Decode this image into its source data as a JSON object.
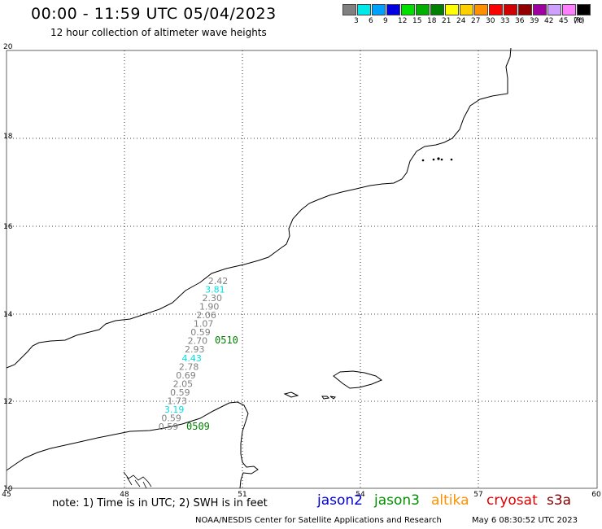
{
  "header": {
    "title": "00:00 - 11:59 UTC 05/04/2023",
    "subtitle": "12 hour collection of altimeter wave heights"
  },
  "legend": {
    "colors": [
      "#808080",
      "#00e8e8",
      "#00a0ff",
      "#0000e0",
      "#00e000",
      "#00b000",
      "#008000",
      "#ffff00",
      "#ffd000",
      "#ff9000",
      "#ff0000",
      "#d00000",
      "#900000",
      "#a000a0",
      "#d0a0ff",
      "#ff80ff",
      "#000000"
    ],
    "labels": [
      "3",
      "6",
      "9",
      "12",
      "15",
      "18",
      "21",
      "24",
      "27",
      "30",
      "33",
      "36",
      "39",
      "42",
      "45",
      "70",
      "(ft)"
    ]
  },
  "axes": {
    "x_ticks": [
      "45",
      "48",
      "51",
      "54",
      "57",
      "60"
    ],
    "y_ticks": [
      "20",
      "18",
      "16",
      "14",
      "12",
      "10"
    ]
  },
  "wave_heights": [
    {
      "value": "2.42",
      "color": "#808080"
    },
    {
      "value": "3.81",
      "color": "#00e0e0"
    },
    {
      "value": "2.30",
      "color": "#808080"
    },
    {
      "value": "1.90",
      "color": "#808080"
    },
    {
      "value": "2.06",
      "color": "#808080"
    },
    {
      "value": "1.07",
      "color": "#808080"
    },
    {
      "value": "0.59",
      "color": "#808080"
    },
    {
      "value": "2.70",
      "color": "#808080"
    },
    {
      "value": "2.93",
      "color": "#808080"
    },
    {
      "value": "4.43",
      "color": "#00e0e0"
    },
    {
      "value": "2.78",
      "color": "#808080"
    },
    {
      "value": "0.69",
      "color": "#808080"
    },
    {
      "value": "2.05",
      "color": "#808080"
    },
    {
      "value": "0.59",
      "color": "#808080"
    },
    {
      "value": "1.73",
      "color": "#808080"
    },
    {
      "value": "3.19",
      "color": "#00e0e0"
    },
    {
      "value": "0.59",
      "color": "#808080"
    },
    {
      "value": "0.59",
      "color": "#808080"
    }
  ],
  "pass_times": [
    {
      "label": "0510",
      "color": "#008000"
    },
    {
      "label": "0509",
      "color": "#008000"
    }
  ],
  "footer": {
    "note": "note: 1) Time is in UTC; 2) SWH is in feet",
    "missions": [
      {
        "name": "jason2",
        "color": "#0000d0"
      },
      {
        "name": "jason3",
        "color": "#009000"
      },
      {
        "name": "altika",
        "color": "#ff9000"
      },
      {
        "name": "cryosat",
        "color": "#e00000"
      },
      {
        "name": "s3a",
        "color": "#800000"
      }
    ],
    "credit": "NOAA/NESDIS Center for Satellite Applications and Research",
    "generated": "May  6 08:30:52 UTC 2023"
  }
}
